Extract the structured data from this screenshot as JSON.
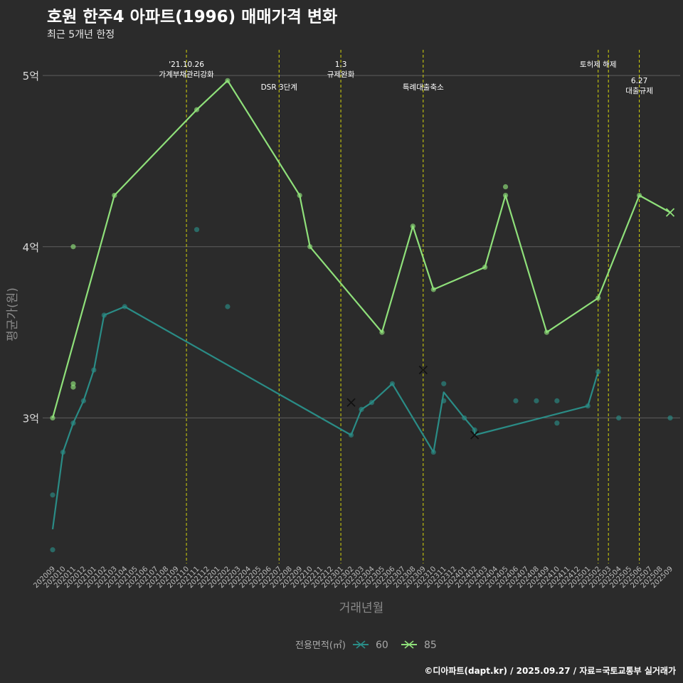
{
  "title": "호원 한주4 아파트(1996) 매매가격 변화",
  "subtitle": "최근 5개년 한정",
  "caption": "©디아파트(dapt.kr) / 2025.09.27 / 자료=국토교통부 실거래가",
  "colors": {
    "background": "#2b2b2b",
    "grid": "#5e5e5e",
    "event_line": "#d4d40a",
    "series_60": "#2a8c86",
    "series_85": "#8fe07a"
  },
  "chart_data": {
    "type": "line",
    "xlabel": "거래년월",
    "ylabel": "평균가(원)",
    "x_categories": [
      "202009",
      "202010",
      "202011",
      "202012",
      "202101",
      "202102",
      "202103",
      "202104",
      "202105",
      "202106",
      "202107",
      "202108",
      "202109",
      "202110",
      "202111",
      "202112",
      "202201",
      "202202",
      "202203",
      "202204",
      "202205",
      "202206",
      "202207",
      "202208",
      "202209",
      "202210",
      "202211",
      "202212",
      "202301",
      "202302",
      "202303",
      "202304",
      "202305",
      "202306",
      "202307",
      "202308",
      "202309",
      "202310",
      "202311",
      "202312",
      "202401",
      "202402",
      "202403",
      "202404",
      "202405",
      "202406",
      "202407",
      "202408",
      "202409",
      "202410",
      "202411",
      "202412",
      "202501",
      "202502",
      "202503",
      "202504",
      "202505",
      "202506",
      "202507",
      "202508",
      "202509"
    ],
    "y_range": [
      21500,
      51500
    ],
    "y_ticks": [
      {
        "value": 30000,
        "label": "3억"
      },
      {
        "value": 40000,
        "label": "4억"
      },
      {
        "value": 50000,
        "label": "5억"
      }
    ],
    "legend": {
      "title": "전용면적(㎡)",
      "position": "bottom"
    },
    "series": [
      {
        "name": "60",
        "color_key": "series_60",
        "line": [
          {
            "x": "202009",
            "y": 23500
          },
          {
            "x": "202010",
            "y": 28000
          },
          {
            "x": "202011",
            "y": 29700
          },
          {
            "x": "202012",
            "y": 31000
          },
          {
            "x": "202101",
            "y": 32800
          },
          {
            "x": "202102",
            "y": 36000
          },
          {
            "x": "202104",
            "y": 36500
          },
          {
            "x": "202302",
            "y": 29000
          },
          {
            "x": "202303",
            "y": 30500
          },
          {
            "x": "202304",
            "y": 30900
          },
          {
            "x": "202306",
            "y": 32000
          },
          {
            "x": "202310",
            "y": 28000
          },
          {
            "x": "202311",
            "y": 31500
          },
          {
            "x": "202401",
            "y": 30000
          },
          {
            "x": "202402",
            "y": 29300
          },
          {
            "x": "202402",
            "y": 29000
          },
          {
            "x": "202501",
            "y": 30700
          },
          {
            "x": "202502",
            "y": 32700
          }
        ],
        "points": [
          {
            "x": "202009",
            "y": 25500
          },
          {
            "x": "202009",
            "y": 22300
          },
          {
            "x": "202010",
            "y": 28000
          },
          {
            "x": "202011",
            "y": 29700
          },
          {
            "x": "202012",
            "y": 31000
          },
          {
            "x": "202101",
            "y": 32800
          },
          {
            "x": "202102",
            "y": 36000
          },
          {
            "x": "202104",
            "y": 36500
          },
          {
            "x": "202111",
            "y": 41000
          },
          {
            "x": "202202",
            "y": 36500
          },
          {
            "x": "202302",
            "y": 29000
          },
          {
            "x": "202303",
            "y": 30500
          },
          {
            "x": "202304",
            "y": 30900
          },
          {
            "x": "202306",
            "y": 32000
          },
          {
            "x": "202310",
            "y": 28000
          },
          {
            "x": "202311",
            "y": 32000
          },
          {
            "x": "202311",
            "y": 31000
          },
          {
            "x": "202401",
            "y": 30000
          },
          {
            "x": "202402",
            "y": 29300
          },
          {
            "x": "202406",
            "y": 31000
          },
          {
            "x": "202408",
            "y": 31000
          },
          {
            "x": "202410",
            "y": 31000
          },
          {
            "x": "202410",
            "y": 29700
          },
          {
            "x": "202501",
            "y": 30700
          },
          {
            "x": "202502",
            "y": 32700
          },
          {
            "x": "202504",
            "y": 30000
          },
          {
            "x": "202509",
            "y": 30000
          }
        ],
        "cross_markers": [
          {
            "x": "202302",
            "y": 30900
          },
          {
            "x": "202309",
            "y": 32800
          },
          {
            "x": "202402",
            "y": 29000
          }
        ]
      },
      {
        "name": "85",
        "color_key": "series_85",
        "line": [
          {
            "x": "202009",
            "y": 30000
          },
          {
            "x": "202103",
            "y": 43000
          },
          {
            "x": "202111",
            "y": 48000
          },
          {
            "x": "202202",
            "y": 49700
          },
          {
            "x": "202209",
            "y": 43000
          },
          {
            "x": "202210",
            "y": 40000
          },
          {
            "x": "202305",
            "y": 35000
          },
          {
            "x": "202308",
            "y": 41200
          },
          {
            "x": "202310",
            "y": 37500
          },
          {
            "x": "202403",
            "y": 38800
          },
          {
            "x": "202405",
            "y": 43000
          },
          {
            "x": "202409",
            "y": 35000
          },
          {
            "x": "202502",
            "y": 37000
          },
          {
            "x": "202506",
            "y": 43000
          },
          {
            "x": "202509",
            "y": 42000
          }
        ],
        "points": [
          {
            "x": "202009",
            "y": 30000
          },
          {
            "x": "202011",
            "y": 40000
          },
          {
            "x": "202011",
            "y": 32000
          },
          {
            "x": "202011",
            "y": 31800
          },
          {
            "x": "202103",
            "y": 43000
          },
          {
            "x": "202111",
            "y": 48000
          },
          {
            "x": "202202",
            "y": 49700
          },
          {
            "x": "202209",
            "y": 43000
          },
          {
            "x": "202210",
            "y": 40000
          },
          {
            "x": "202305",
            "y": 35000
          },
          {
            "x": "202308",
            "y": 41200
          },
          {
            "x": "202310",
            "y": 37500
          },
          {
            "x": "202403",
            "y": 38800
          },
          {
            "x": "202405",
            "y": 43500
          },
          {
            "x": "202405",
            "y": 43000
          },
          {
            "x": "202409",
            "y": 35000
          },
          {
            "x": "202502",
            "y": 37000
          },
          {
            "x": "202506",
            "y": 43000
          }
        ],
        "cross_markers": [
          {
            "x": "202509",
            "y": 42000
          }
        ]
      }
    ],
    "events": [
      {
        "x": "202110",
        "lines": [
          "'21.10.26",
          "가계부채관리강화"
        ],
        "row": 1
      },
      {
        "x": "202207",
        "lines": [
          "DSR 3단계"
        ],
        "row": 2
      },
      {
        "x": "202301",
        "lines": [
          "1.3",
          "규제완화"
        ],
        "row": 1
      },
      {
        "x": "202309",
        "lines": [
          "특례대출축소"
        ],
        "row": 2
      },
      {
        "x": "202502",
        "lines": [
          "토허제 해제"
        ],
        "row": 1
      },
      {
        "x": "202503",
        "lines": [],
        "row": 1
      },
      {
        "x": "202506",
        "lines": [
          "6.27",
          "대출규제"
        ],
        "row": 3
      }
    ]
  }
}
